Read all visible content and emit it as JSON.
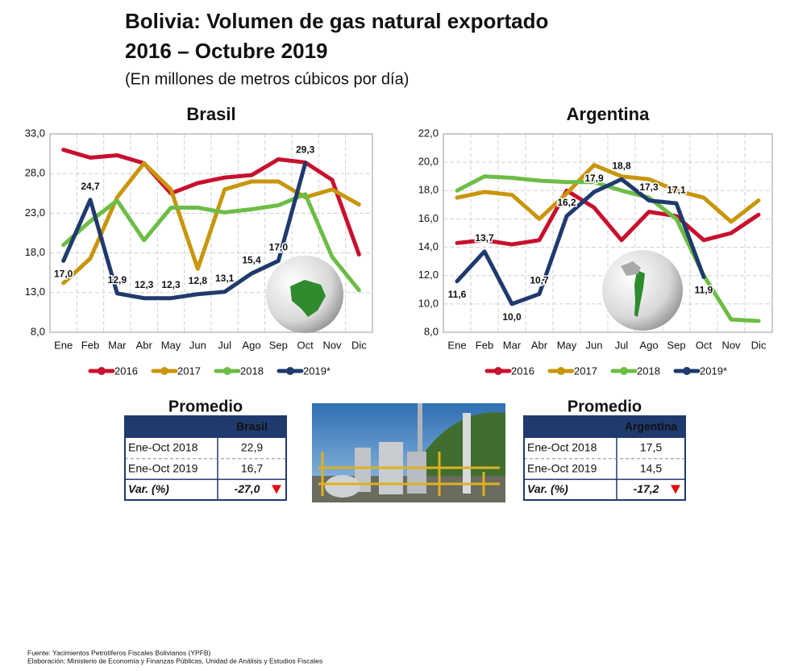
{
  "header": {
    "title": [
      "Bolivia: Volumen de gas natural exportado",
      "2016 – Octubre 2019"
    ],
    "subtitle": "(En millones de metros cúbicos por día)"
  },
  "chart_data": [
    {
      "type": "line",
      "title": "Brasil",
      "categories": [
        "Ene",
        "Feb",
        "Mar",
        "Abr",
        "May",
        "Jun",
        "Jul",
        "Ago",
        "Sep",
        "Oct",
        "Nov",
        "Dic"
      ],
      "ylim": [
        8,
        33
      ],
      "yticks": [
        {
          "value": 8,
          "label": "8,0"
        },
        {
          "value": 13,
          "label": "13,0"
        },
        {
          "value": 18,
          "label": "18,0"
        },
        {
          "value": 23,
          "label": "23,0"
        },
        {
          "value": 28,
          "label": "28,0"
        },
        {
          "value": 33,
          "label": "33,0"
        }
      ],
      "grid": true,
      "legend": "bottom",
      "series": [
        {
          "name": "2016",
          "color": "#c8102e",
          "values": [
            31.0,
            30.0,
            30.3,
            29.3,
            25.5,
            26.8,
            27.5,
            27.8,
            29.8,
            29.4,
            27.2,
            17.8
          ]
        },
        {
          "name": "2017",
          "color": "#c8960c",
          "values": [
            14.2,
            17.3,
            25.0,
            29.3,
            26.0,
            16.0,
            26.0,
            27.0,
            27.0,
            25.0,
            26.0,
            24.1
          ]
        },
        {
          "name": "2018",
          "color": "#6cbd45",
          "values": [
            19.0,
            22.0,
            24.6,
            19.6,
            23.7,
            23.7,
            23.1,
            23.5,
            24.0,
            25.4,
            17.5,
            13.3
          ]
        },
        {
          "name": "2019*",
          "color": "#1f3a6d",
          "values": [
            17.0,
            24.7,
            12.9,
            12.3,
            12.3,
            12.8,
            13.1,
            15.4,
            17.0,
            29.3,
            null,
            null
          ],
          "value_labels": [
            "17,0",
            "24,7",
            "12,9",
            "12,3",
            "12,3",
            "12,8",
            "13,1",
            "15,4",
            "17,0",
            "29,3",
            null,
            null
          ]
        }
      ]
    },
    {
      "type": "line",
      "title": "Argentina",
      "categories": [
        "Ene",
        "Feb",
        "Mar",
        "Abr",
        "May",
        "Jun",
        "Jul",
        "Ago",
        "Sep",
        "Oct",
        "Nov",
        "Dic"
      ],
      "ylim": [
        8,
        22
      ],
      "yticks": [
        {
          "value": 8,
          "label": "8,0"
        },
        {
          "value": 10,
          "label": "10,0"
        },
        {
          "value": 12,
          "label": "12,0"
        },
        {
          "value": 14,
          "label": "14,0"
        },
        {
          "value": 16,
          "label": "16,0"
        },
        {
          "value": 18,
          "label": "18,0"
        },
        {
          "value": 20,
          "label": "20,0"
        },
        {
          "value": 22,
          "label": "22,0"
        }
      ],
      "grid": true,
      "legend": "bottom",
      "series": [
        {
          "name": "2016",
          "color": "#c8102e",
          "values": [
            14.3,
            14.5,
            14.2,
            14.5,
            18.0,
            16.8,
            14.5,
            16.5,
            16.2,
            14.5,
            15.0,
            16.3
          ]
        },
        {
          "name": "2017",
          "color": "#c8960c",
          "values": [
            17.5,
            17.9,
            17.7,
            16.0,
            17.8,
            19.8,
            19.0,
            18.8,
            18.0,
            17.5,
            15.8,
            17.3
          ]
        },
        {
          "name": "2018",
          "color": "#6cbd45",
          "values": [
            18.0,
            19.0,
            18.9,
            18.7,
            18.6,
            18.6,
            18.0,
            17.5,
            16.0,
            12.0,
            8.9,
            8.8
          ]
        },
        {
          "name": "2019*",
          "color": "#1f3a6d",
          "values": [
            11.6,
            13.7,
            10.0,
            10.7,
            16.2,
            17.9,
            18.8,
            17.3,
            17.1,
            11.9,
            null,
            null
          ],
          "value_labels": [
            "11,6",
            "13,7",
            "10,0",
            "10,7",
            "16,2",
            "17,9",
            "18,8",
            "17,3",
            "17,1",
            "11,9",
            null,
            null
          ]
        }
      ]
    }
  ],
  "tables": [
    {
      "title": "Promedio",
      "header": "Brasil",
      "rows": [
        [
          "Ene-Oct 2018",
          "22,9"
        ],
        [
          "Ene-Oct 2019",
          "16,7"
        ],
        [
          "Var. (%)",
          "-27,0"
        ]
      ]
    },
    {
      "title": "Promedio",
      "header": "Argentina",
      "rows": [
        [
          "Ene-Oct 2018",
          "17,5"
        ],
        [
          "Ene-Oct 2019",
          "14,5"
        ],
        [
          "Var. (%)",
          "-17,2"
        ]
      ]
    }
  ],
  "footer": [
    "Fuente: Yacimientos Petrolíferos Fiscales Bolivianos (YPFB)",
    "Elaboración: Ministerio de Economía y Finanzas Públicas, Unidad de Análisis y Estudios Fiscales"
  ]
}
